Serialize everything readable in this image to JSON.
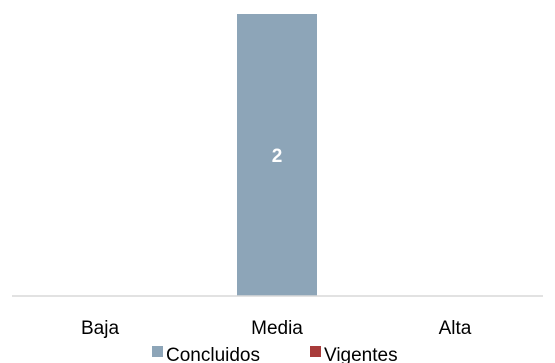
{
  "chart_data": {
    "type": "bar",
    "categories": [
      "Baja",
      "Media",
      "Alta"
    ],
    "series": [
      {
        "name": "Concluidos",
        "values": [
          0,
          2,
          0
        ],
        "color": "#8DA5B8"
      },
      {
        "name": "Vigentes",
        "values": [
          0,
          0,
          0
        ],
        "color": "#A83B3A"
      }
    ],
    "data_labels": [
      "",
      "2",
      ""
    ],
    "ylim": [
      0,
      2
    ],
    "grid": false,
    "legend_position": "bottom",
    "axis_color": "#D9D9D9"
  }
}
